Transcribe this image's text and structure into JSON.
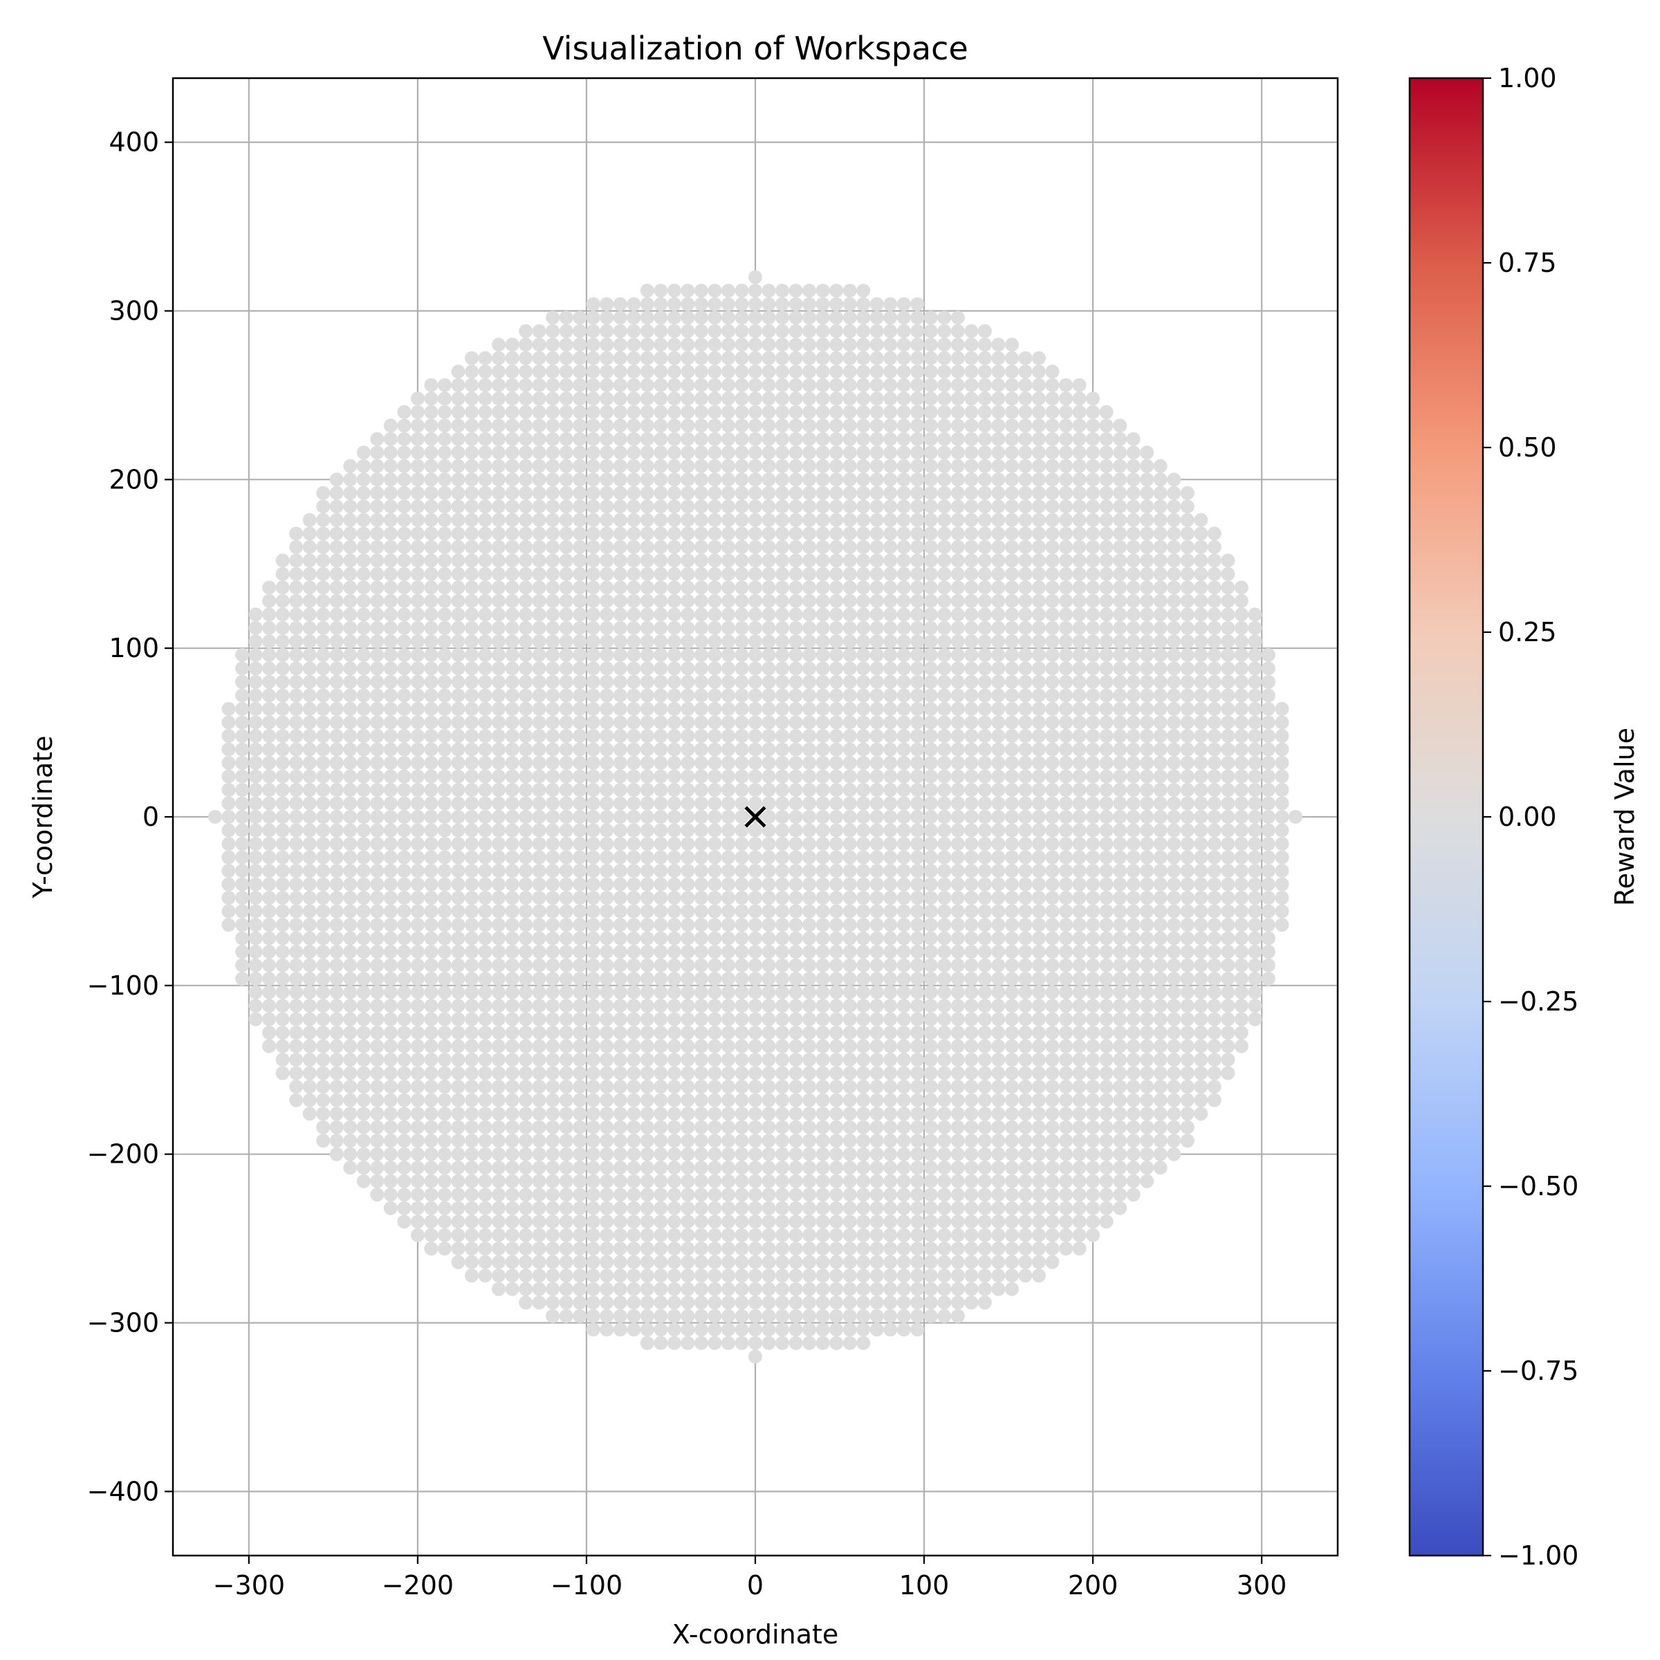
{
  "chart_data": {
    "type": "scatter",
    "title": "Visualization of Workspace",
    "xlabel": "X-coordinate",
    "ylabel": "Y-coordinate",
    "xlim": [
      -345,
      345
    ],
    "ylim": [
      -438,
      438
    ],
    "xticks": [
      -300,
      -200,
      -100,
      0,
      100,
      200,
      300
    ],
    "yticks": [
      -400,
      -300,
      -200,
      -100,
      0,
      100,
      200,
      300,
      400
    ],
    "grid": true,
    "workspace": {
      "shape": "disc",
      "center": [
        0,
        0
      ],
      "radius": 320,
      "grid_step": 8,
      "reward_value": 0.0,
      "point_color": "#dddddd"
    },
    "marker": {
      "x": 0,
      "y": 0,
      "symbol": "x",
      "color": "#000000"
    },
    "colorbar": {
      "label": "Reward Value",
      "colormap": "coolwarm",
      "range": [
        -1.0,
        1.0
      ],
      "ticks": [
        "1.00",
        "0.75",
        "0.50",
        "0.25",
        "0.00",
        "−0.25",
        "−0.50",
        "−0.75",
        "−1.00"
      ],
      "tick_values": [
        1.0,
        0.75,
        0.5,
        0.25,
        0.0,
        -0.25,
        -0.5,
        -0.75,
        -1.0
      ],
      "colors": [
        "#b40426",
        "#dc5d4a",
        "#f49a7b",
        "#f2cbb7",
        "#dddddd",
        "#c0d4f5",
        "#93b5fe",
        "#6282ea",
        "#3b4cc0"
      ]
    }
  }
}
